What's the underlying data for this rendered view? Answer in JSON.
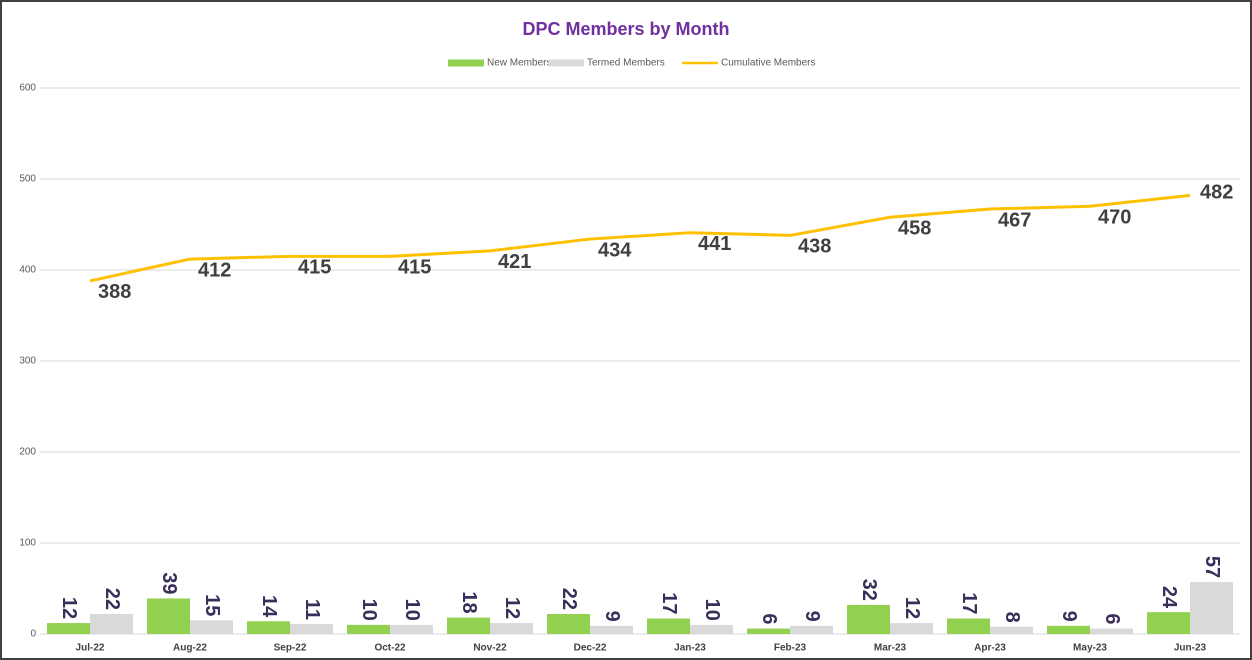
{
  "chart_data": {
    "type": "bar",
    "title": "DPC Members by Month",
    "categories": [
      "Jul-22",
      "Aug-22",
      "Sep-22",
      "Oct-22",
      "Nov-22",
      "Dec-22",
      "Jan-23",
      "Feb-23",
      "Mar-23",
      "Apr-23",
      "May-23",
      "Jun-23"
    ],
    "series": [
      {
        "name": "New Members",
        "type": "bar",
        "color": "#92d050",
        "values": [
          12,
          39,
          14,
          10,
          18,
          22,
          17,
          6,
          32,
          17,
          9,
          24
        ]
      },
      {
        "name": "Termed Members",
        "type": "bar",
        "color": "#d9d9d9",
        "values": [
          22,
          15,
          11,
          10,
          12,
          9,
          10,
          9,
          12,
          8,
          6,
          57
        ]
      },
      {
        "name": "Cumulative Members",
        "type": "line",
        "color": "#ffc000",
        "values": [
          388,
          412,
          415,
          415,
          421,
          434,
          441,
          438,
          458,
          467,
          470,
          482
        ]
      }
    ],
    "ylim": [
      0,
      600
    ],
    "yticks": [
      0,
      100,
      200,
      300,
      400,
      500,
      600
    ],
    "grid": true,
    "legend": "top"
  }
}
